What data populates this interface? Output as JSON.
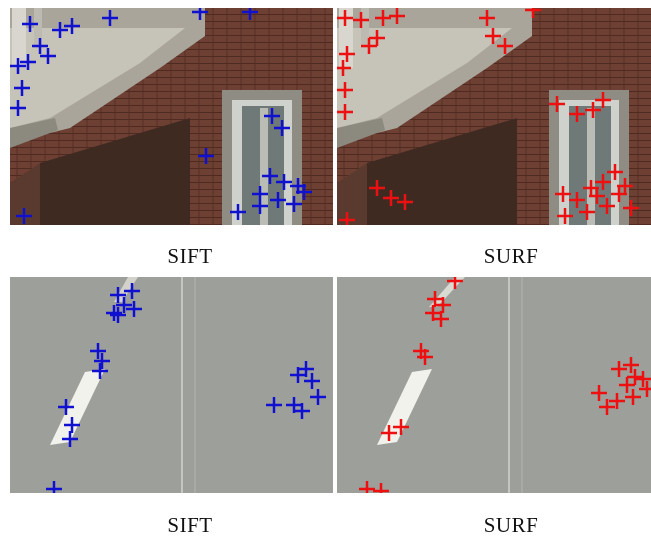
{
  "captions": {
    "top_left": "SIFT",
    "top_right": "SURF",
    "bottom_left": "SIFT",
    "bottom_right": "SURF"
  },
  "colors": {
    "sift_marker": "#1010d0",
    "surf_marker": "#ee1010"
  },
  "panels": [
    {
      "scene": "building-facade",
      "detector": "SIFT",
      "marker_color": "blue"
    },
    {
      "scene": "building-facade",
      "detector": "SURF",
      "marker_color": "red"
    },
    {
      "scene": "road-surface",
      "detector": "SIFT",
      "marker_color": "blue"
    },
    {
      "scene": "road-surface",
      "detector": "SURF",
      "marker_color": "red"
    }
  ]
}
